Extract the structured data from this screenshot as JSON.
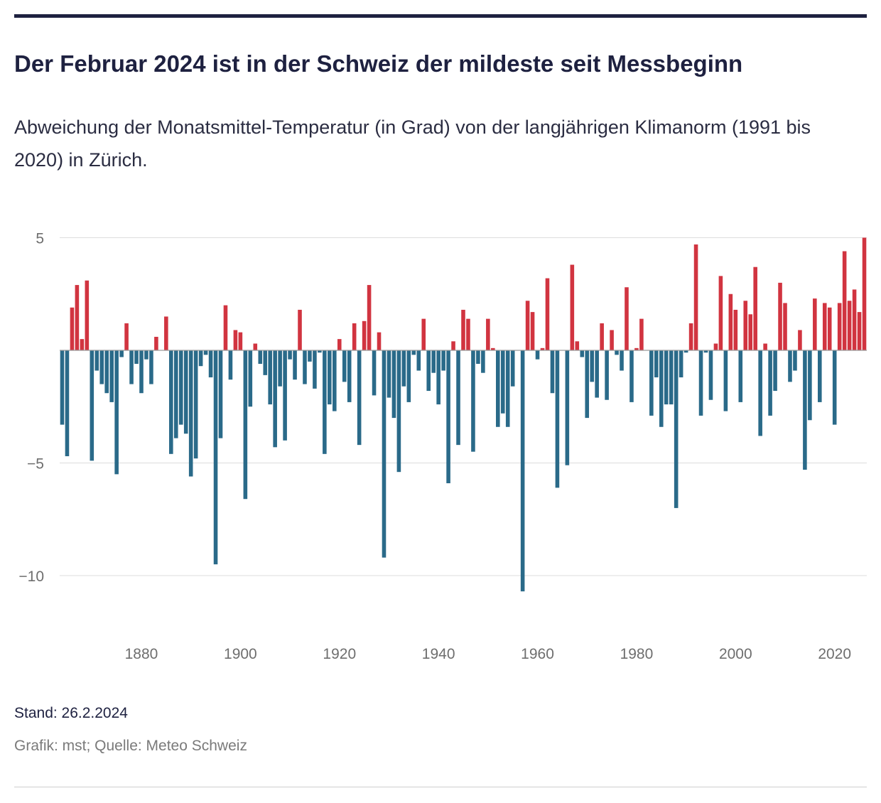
{
  "header": {
    "title": "Der Februar 2024 ist in der Schweiz der mildeste seit Messbeginn",
    "subtitle": "Abweichung der Monatsmittel-Temperatur (in Grad) von der langjährigen Klimanorm (1991 bis 2020) in Zürich."
  },
  "footer": {
    "stand": "Stand: 26.2.2024",
    "source": "Grafik: mst; Quelle: Meteo Schweiz"
  },
  "colors": {
    "positive": "#d13440",
    "negative": "#2a6a89",
    "grid": "#dddddd",
    "axis_text": "#6e6e6e"
  },
  "chart_data": {
    "type": "bar",
    "title": "Der Februar 2024 ist in der Schweiz der mildeste seit Messbeginn",
    "subtitle": "Abweichung der Monatsmittel-Temperatur (in Grad) von der langjährigen Klimanorm (1991 bis 2020) in Zürich.",
    "xlabel": "",
    "ylabel": "",
    "x_start": 1864,
    "x_end": 2024,
    "x_ticks": [
      1880,
      1900,
      1920,
      1940,
      1960,
      1980,
      2000,
      2020
    ],
    "y_ticks": [
      5,
      -5,
      -10
    ],
    "y_tick_labels": [
      "5",
      "−5",
      "−10"
    ],
    "ylim": [
      -10.8,
      5
    ],
    "grid": true,
    "legend": "none",
    "values": [
      -3.3,
      -4.7,
      1.9,
      2.9,
      0.5,
      3.1,
      -4.9,
      -0.9,
      -1.5,
      -1.9,
      -2.3,
      -5.5,
      -0.3,
      1.2,
      -1.5,
      -0.6,
      -1.9,
      -0.4,
      -1.5,
      0.6,
      0.0,
      1.5,
      -4.6,
      -3.9,
      -3.3,
      -3.7,
      -5.6,
      -4.8,
      -0.7,
      -0.2,
      -1.2,
      -9.5,
      -3.9,
      2.0,
      -1.3,
      0.9,
      0.8,
      -6.6,
      -2.5,
      0.3,
      -0.6,
      -1.1,
      -2.4,
      -4.3,
      -1.6,
      -4.0,
      -0.4,
      -1.3,
      1.8,
      -1.5,
      -0.5,
      -1.7,
      -0.1,
      -4.6,
      -2.4,
      -2.7,
      0.5,
      -1.4,
      -2.3,
      1.2,
      -4.2,
      1.3,
      2.9,
      -2.0,
      0.8,
      -9.2,
      -2.1,
      -3.0,
      -5.4,
      -1.6,
      -2.3,
      -0.2,
      -0.9,
      1.4,
      -1.8,
      -1.0,
      -2.4,
      -0.9,
      -5.9,
      0.4,
      -4.2,
      1.8,
      1.4,
      -4.5,
      -0.6,
      -1.0,
      1.4,
      0.1,
      -3.4,
      -2.8,
      -3.4,
      -1.6,
      0.0,
      -10.7,
      2.2,
      1.7,
      -0.4,
      0.1,
      3.2,
      -1.9,
      -6.1,
      0.0,
      -5.1,
      3.8,
      0.4,
      -0.3,
      -3.0,
      -1.4,
      -2.1,
      1.2,
      -2.2,
      0.9,
      -0.2,
      -0.9,
      2.8,
      -2.3,
      0.1,
      1.4,
      0.0,
      -2.9,
      -1.2,
      -3.4,
      -2.4,
      -2.4,
      -7.0,
      -1.2,
      -0.1,
      1.2,
      4.7,
      -2.9,
      -0.1,
      -2.2,
      0.3,
      3.3,
      -2.7,
      2.5,
      1.8,
      -2.3,
      2.2,
      1.6,
      3.7,
      -3.8,
      0.3,
      -2.9,
      -1.8,
      3.0,
      2.1,
      -1.4,
      -0.9,
      0.9,
      -5.3,
      -3.1,
      2.3,
      -2.3,
      2.1,
      1.9,
      -3.3,
      2.1,
      4.4,
      2.2,
      2.7,
      1.7,
      5.0
    ]
  }
}
